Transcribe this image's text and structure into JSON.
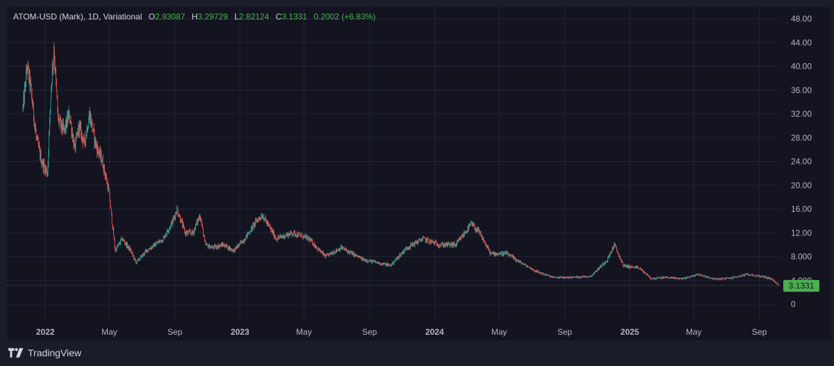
{
  "header": {
    "symbol": "ATOM-USD (Mark), 1D, Variational",
    "o_label": "O",
    "o_value": "2.93087",
    "h_label": "H",
    "h_value": "3.29729",
    "l_label": "L",
    "l_value": "2.82124",
    "c_label": "C",
    "c_value": "3.1331",
    "change": "0.2002 (+6.83%)"
  },
  "brand": {
    "name": "TradingView"
  },
  "colors": {
    "up": "#26a69a",
    "down": "#ef5350",
    "price_badge": "#4caf50",
    "grid": "#22243a"
  },
  "chart_data": {
    "type": "candlestick",
    "title": "ATOM-USD (Mark), 1D, Variational",
    "y_ticks": [
      "48.00",
      "44.00",
      "40.00",
      "36.00",
      "32.00",
      "28.00",
      "24.00",
      "20.00",
      "16.00",
      "12.00",
      "8.000",
      "4.000",
      "0"
    ],
    "x_ticks": [
      "2022",
      "May",
      "Sep",
      "2023",
      "May",
      "Sep",
      "2024",
      "May",
      "Sep",
      "2025",
      "May",
      "Sep"
    ],
    "ylim": [
      0,
      48
    ],
    "last_price": "3.1331",
    "price_path": [
      {
        "date": "2021-11-20",
        "price": 33
      },
      {
        "date": "2021-11-28",
        "price": 40
      },
      {
        "date": "2021-12-05",
        "price": 36
      },
      {
        "date": "2021-12-15",
        "price": 28
      },
      {
        "date": "2021-12-25",
        "price": 24
      },
      {
        "date": "2022-01-05",
        "price": 22
      },
      {
        "date": "2022-01-12",
        "price": 37
      },
      {
        "date": "2022-01-17",
        "price": 43
      },
      {
        "date": "2022-01-25",
        "price": 31
      },
      {
        "date": "2022-02-05",
        "price": 29
      },
      {
        "date": "2022-02-15",
        "price": 32
      },
      {
        "date": "2022-02-25",
        "price": 26
      },
      {
        "date": "2022-03-05",
        "price": 30
      },
      {
        "date": "2022-03-15",
        "price": 27
      },
      {
        "date": "2022-03-25",
        "price": 32
      },
      {
        "date": "2022-04-05",
        "price": 27
      },
      {
        "date": "2022-04-18",
        "price": 24
      },
      {
        "date": "2022-04-30",
        "price": 19
      },
      {
        "date": "2022-05-12",
        "price": 9
      },
      {
        "date": "2022-05-25",
        "price": 11
      },
      {
        "date": "2022-06-10",
        "price": 9
      },
      {
        "date": "2022-06-20",
        "price": 7
      },
      {
        "date": "2022-07-10",
        "price": 9
      },
      {
        "date": "2022-08-10",
        "price": 11
      },
      {
        "date": "2022-08-28",
        "price": 14
      },
      {
        "date": "2022-09-05",
        "price": 16
      },
      {
        "date": "2022-09-20",
        "price": 12
      },
      {
        "date": "2022-10-05",
        "price": 12
      },
      {
        "date": "2022-10-18",
        "price": 15
      },
      {
        "date": "2022-10-28",
        "price": 10
      },
      {
        "date": "2022-11-10",
        "price": 9.5
      },
      {
        "date": "2022-12-01",
        "price": 10
      },
      {
        "date": "2022-12-20",
        "price": 9
      },
      {
        "date": "2023-01-10",
        "price": 11
      },
      {
        "date": "2023-02-01",
        "price": 14
      },
      {
        "date": "2023-02-12",
        "price": 15
      },
      {
        "date": "2023-03-10",
        "price": 11
      },
      {
        "date": "2023-04-10",
        "price": 12
      },
      {
        "date": "2023-05-10",
        "price": 11
      },
      {
        "date": "2023-06-10",
        "price": 8
      },
      {
        "date": "2023-07-10",
        "price": 9.5
      },
      {
        "date": "2023-08-20",
        "price": 7.5
      },
      {
        "date": "2023-10-10",
        "price": 6.5
      },
      {
        "date": "2023-11-10",
        "price": 9.5
      },
      {
        "date": "2023-12-10",
        "price": 11
      },
      {
        "date": "2024-01-10",
        "price": 10
      },
      {
        "date": "2024-02-10",
        "price": 10
      },
      {
        "date": "2024-03-10",
        "price": 13.5
      },
      {
        "date": "2024-03-25",
        "price": 12
      },
      {
        "date": "2024-04-15",
        "price": 8.5
      },
      {
        "date": "2024-05-15",
        "price": 8.5
      },
      {
        "date": "2024-06-10",
        "price": 7
      },
      {
        "date": "2024-07-10",
        "price": 5.5
      },
      {
        "date": "2024-08-10",
        "price": 4.5
      },
      {
        "date": "2024-09-10",
        "price": 4.5
      },
      {
        "date": "2024-10-20",
        "price": 4.7
      },
      {
        "date": "2024-11-20",
        "price": 7.5
      },
      {
        "date": "2024-12-03",
        "price": 10
      },
      {
        "date": "2024-12-20",
        "price": 6.5
      },
      {
        "date": "2025-01-20",
        "price": 6
      },
      {
        "date": "2025-02-10",
        "price": 4.3
      },
      {
        "date": "2025-03-10",
        "price": 4.5
      },
      {
        "date": "2025-04-10",
        "price": 4.3
      },
      {
        "date": "2025-05-10",
        "price": 5
      },
      {
        "date": "2025-06-10",
        "price": 4.2
      },
      {
        "date": "2025-07-10",
        "price": 4.4
      },
      {
        "date": "2025-08-10",
        "price": 5
      },
      {
        "date": "2025-09-10",
        "price": 4.6
      },
      {
        "date": "2025-09-25",
        "price": 4.2
      },
      {
        "date": "2025-10-08",
        "price": 3.1
      }
    ]
  }
}
